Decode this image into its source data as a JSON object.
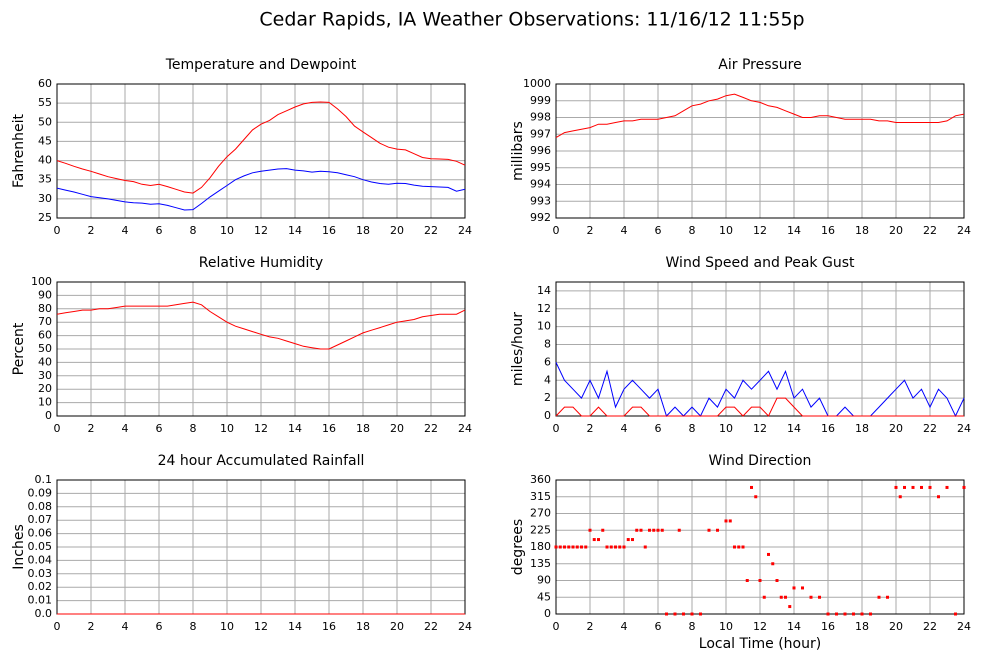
{
  "title": "Cedar Rapids, IA Weather Observations: 11/16/12 11:55p",
  "chart_data": [
    {
      "type": "line",
      "title": "Temperature and Dewpoint",
      "ylabel": "Fahrenheit",
      "grid": true,
      "x": [
        0,
        0.5,
        1,
        1.5,
        2,
        2.5,
        3,
        3.5,
        4,
        4.5,
        5,
        5.5,
        6,
        6.5,
        7,
        7.5,
        8,
        8.5,
        9,
        9.5,
        10,
        10.5,
        11,
        11.5,
        12,
        12.5,
        13,
        13.5,
        14,
        14.5,
        15,
        15.5,
        16,
        16.5,
        17,
        17.5,
        18,
        18.5,
        19,
        19.5,
        20,
        20.5,
        21,
        21.5,
        22,
        22.5,
        23,
        23.5,
        24
      ],
      "xlim": [
        0,
        24
      ],
      "xticks": [
        0,
        2,
        4,
        6,
        8,
        10,
        12,
        14,
        16,
        18,
        20,
        22,
        24
      ],
      "ylim": [
        25,
        60
      ],
      "yticks": [
        25,
        30,
        35,
        40,
        45,
        50,
        55,
        60
      ],
      "series": [
        {
          "color": "#ff0000",
          "values": [
            40,
            39.3,
            38.5,
            37.8,
            37.2,
            36.5,
            35.8,
            35.3,
            34.8,
            34.5,
            33.8,
            33.5,
            33.8,
            33.2,
            32.5,
            31.8,
            31.5,
            33,
            35.5,
            38.5,
            41,
            43,
            45.5,
            48,
            49.5,
            50.5,
            52,
            53,
            54,
            54.8,
            55.2,
            55.3,
            55.2,
            53.5,
            51.5,
            49,
            47.5,
            46,
            44.5,
            43.5,
            43,
            42.8,
            41.8,
            40.8,
            40.5,
            40.4,
            40.3,
            39.8,
            38.8
          ]
        },
        {
          "color": "#0000ff",
          "values": [
            32.8,
            32.3,
            31.8,
            31.2,
            30.6,
            30.3,
            30,
            29.6,
            29.2,
            29,
            28.9,
            28.6,
            28.7,
            28.3,
            27.7,
            27.1,
            27.2,
            28.8,
            30.5,
            32,
            33.5,
            35,
            36,
            36.8,
            37.2,
            37.5,
            37.8,
            37.9,
            37.5,
            37.3,
            37,
            37.2,
            37.1,
            36.8,
            36.3,
            35.8,
            35,
            34.4,
            34,
            33.8,
            34.1,
            34,
            33.6,
            33.3,
            33.2,
            33.1,
            33,
            32,
            32.5
          ]
        }
      ]
    },
    {
      "type": "line",
      "title": "Air Pressure",
      "ylabel": "millibars",
      "grid": true,
      "x": [
        0,
        0.5,
        1,
        1.5,
        2,
        2.5,
        3,
        3.5,
        4,
        4.5,
        5,
        5.5,
        6,
        6.5,
        7,
        7.5,
        8,
        8.5,
        9,
        9.5,
        10,
        10.5,
        11,
        11.5,
        12,
        12.5,
        13,
        13.5,
        14,
        14.5,
        15,
        15.5,
        16,
        16.5,
        17,
        17.5,
        18,
        18.5,
        19,
        19.5,
        20,
        20.5,
        21,
        21.5,
        22,
        22.5,
        23,
        23.5,
        24
      ],
      "xlim": [
        0,
        24
      ],
      "xticks": [
        0,
        2,
        4,
        6,
        8,
        10,
        12,
        14,
        16,
        18,
        20,
        22,
        24
      ],
      "ylim": [
        992,
        1000
      ],
      "yticks": [
        992,
        993,
        994,
        995,
        996,
        997,
        998,
        999,
        1000
      ],
      "series": [
        {
          "color": "#ff0000",
          "values": [
            996.8,
            997.1,
            997.2,
            997.3,
            997.4,
            997.6,
            997.6,
            997.7,
            997.8,
            997.8,
            997.9,
            997.9,
            997.9,
            998,
            998.1,
            998.4,
            998.7,
            998.8,
            999,
            999.1,
            999.3,
            999.4,
            999.2,
            999,
            998.9,
            998.7,
            998.6,
            998.4,
            998.2,
            998,
            998,
            998.1,
            998.1,
            998,
            997.9,
            997.9,
            997.9,
            997.9,
            997.8,
            997.8,
            997.7,
            997.7,
            997.7,
            997.7,
            997.7,
            997.7,
            997.8,
            998.1,
            998.2
          ]
        }
      ]
    },
    {
      "type": "line",
      "title": "Relative Humidity",
      "ylabel": "Percent",
      "grid": true,
      "x": [
        0,
        0.5,
        1,
        1.5,
        2,
        2.5,
        3,
        3.5,
        4,
        4.5,
        5,
        5.5,
        6,
        6.5,
        7,
        7.5,
        8,
        8.5,
        9,
        9.5,
        10,
        10.5,
        11,
        11.5,
        12,
        12.5,
        13,
        13.5,
        14,
        14.5,
        15,
        15.5,
        16,
        16.5,
        17,
        17.5,
        18,
        18.5,
        19,
        19.5,
        20,
        20.5,
        21,
        21.5,
        22,
        22.5,
        23,
        23.5,
        24
      ],
      "xlim": [
        0,
        24
      ],
      "xticks": [
        0,
        2,
        4,
        6,
        8,
        10,
        12,
        14,
        16,
        18,
        20,
        22,
        24
      ],
      "ylim": [
        0,
        100
      ],
      "yticks": [
        0,
        10,
        20,
        30,
        40,
        50,
        60,
        70,
        80,
        90,
        100
      ],
      "series": [
        {
          "color": "#ff0000",
          "values": [
            76,
            77,
            78,
            79,
            79,
            80,
            80,
            81,
            82,
            82,
            82,
            82,
            82,
            82,
            83,
            84,
            85,
            83,
            78,
            74,
            70,
            67,
            65,
            63,
            61,
            59,
            58,
            56,
            54,
            52,
            51,
            50,
            50,
            53,
            56,
            59,
            62,
            64,
            66,
            68,
            70,
            71,
            72,
            74,
            75,
            76,
            76,
            76,
            79
          ]
        }
      ]
    },
    {
      "type": "line",
      "title": "Wind Speed and Peak Gust",
      "ylabel": "miles/hour",
      "grid": true,
      "x": [
        0,
        0.5,
        1,
        1.5,
        2,
        2.5,
        3,
        3.5,
        4,
        4.5,
        5,
        5.5,
        6,
        6.5,
        7,
        7.5,
        8,
        8.5,
        9,
        9.5,
        10,
        10.5,
        11,
        11.5,
        12,
        12.5,
        13,
        13.5,
        14,
        14.5,
        15,
        15.5,
        16,
        16.5,
        17,
        17.5,
        18,
        18.5,
        19,
        19.5,
        20,
        20.5,
        21,
        21.5,
        22,
        22.5,
        23,
        23.5,
        24
      ],
      "xlim": [
        0,
        24
      ],
      "xticks": [
        0,
        2,
        4,
        6,
        8,
        10,
        12,
        14,
        16,
        18,
        20,
        22,
        24
      ],
      "ylim": [
        0,
        15
      ],
      "yticks": [
        0,
        2,
        4,
        6,
        8,
        10,
        12,
        14
      ],
      "series": [
        {
          "color": "#0000ff",
          "values": [
            6,
            4,
            3,
            2,
            4,
            2,
            5,
            1,
            3,
            4,
            3,
            2,
            3,
            0,
            1,
            0,
            1,
            0,
            2,
            1,
            3,
            2,
            4,
            3,
            4,
            5,
            3,
            5,
            2,
            3,
            1,
            2,
            0,
            0,
            1,
            0,
            0,
            0,
            1,
            2,
            3,
            4,
            2,
            3,
            1,
            3,
            2,
            0,
            2
          ]
        },
        {
          "color": "#ff0000",
          "values": [
            0,
            1,
            1,
            0,
            0,
            1,
            0,
            0,
            0,
            1,
            1,
            0,
            0,
            0,
            0,
            0,
            0,
            0,
            0,
            0,
            1,
            1,
            0,
            1,
            1,
            0,
            2,
            2,
            1,
            0,
            0,
            0,
            0,
            0,
            0,
            0,
            0,
            0,
            0,
            0,
            0,
            0,
            0,
            0,
            0,
            0,
            0,
            0,
            0
          ]
        }
      ]
    },
    {
      "type": "line",
      "title": "24 hour Accumulated Rainfall",
      "ylabel": "Inches",
      "grid": true,
      "x": [
        0,
        24
      ],
      "xlim": [
        0,
        24
      ],
      "xticks": [
        0,
        2,
        4,
        6,
        8,
        10,
        12,
        14,
        16,
        18,
        20,
        22,
        24
      ],
      "ylim": [
        0,
        0.1
      ],
      "yticks": [
        {
          "value": 0,
          "label": "0.0"
        },
        0.01,
        0.02,
        0.03,
        0.04,
        0.05,
        0.06,
        0.07,
        0.08,
        0.09,
        0.1
      ],
      "series": [
        {
          "color": "#ff0000",
          "values": [
            0,
            0
          ]
        }
      ]
    },
    {
      "type": "scatter",
      "title": "Wind Direction",
      "ylabel": "degrees",
      "xlabel": "Local Time (hour)",
      "grid": true,
      "x": [
        0,
        0.25,
        0.5,
        0.75,
        1,
        1.25,
        1.5,
        1.75,
        2,
        2.25,
        2.5,
        2.75,
        3,
        3.25,
        3.5,
        3.75,
        4,
        4.25,
        4.5,
        4.75,
        5,
        5.25,
        5.5,
        5.75,
        6,
        6.25,
        6.5,
        7,
        7.25,
        7.5,
        8,
        8.5,
        9,
        9.5,
        10,
        10.25,
        10.5,
        10.75,
        11,
        11.25,
        11.5,
        11.75,
        12,
        12.25,
        12.5,
        12.75,
        13,
        13.25,
        13.5,
        13.75,
        14,
        14.5,
        15,
        15.5,
        16,
        16.5,
        17,
        17.5,
        18,
        18.5,
        19,
        19.5,
        20,
        20.25,
        20.5,
        21,
        21.5,
        22,
        22.5,
        23,
        23.5,
        24
      ],
      "xlim": [
        0,
        24
      ],
      "xticks": [
        0,
        2,
        4,
        6,
        8,
        10,
        12,
        14,
        16,
        18,
        20,
        22,
        24
      ],
      "ylim": [
        0,
        360
      ],
      "yticks": [
        0,
        45,
        90,
        135,
        180,
        225,
        270,
        315,
        360
      ],
      "series": [
        {
          "color": "#ff0000",
          "values": [
            180,
            180,
            180,
            180,
            180,
            180,
            180,
            180,
            225,
            200,
            200,
            225,
            180,
            180,
            180,
            180,
            180,
            200,
            200,
            225,
            225,
            180,
            225,
            225,
            225,
            225,
            0,
            0,
            225,
            0,
            0,
            0,
            225,
            225,
            250,
            250,
            180,
            180,
            180,
            90,
            340,
            315,
            90,
            45,
            160,
            135,
            90,
            45,
            45,
            20,
            70,
            70,
            45,
            45,
            0,
            0,
            0,
            0,
            0,
            0,
            45,
            45,
            340,
            315,
            340,
            340,
            340,
            340,
            315,
            340,
            0,
            340
          ]
        }
      ]
    }
  ]
}
